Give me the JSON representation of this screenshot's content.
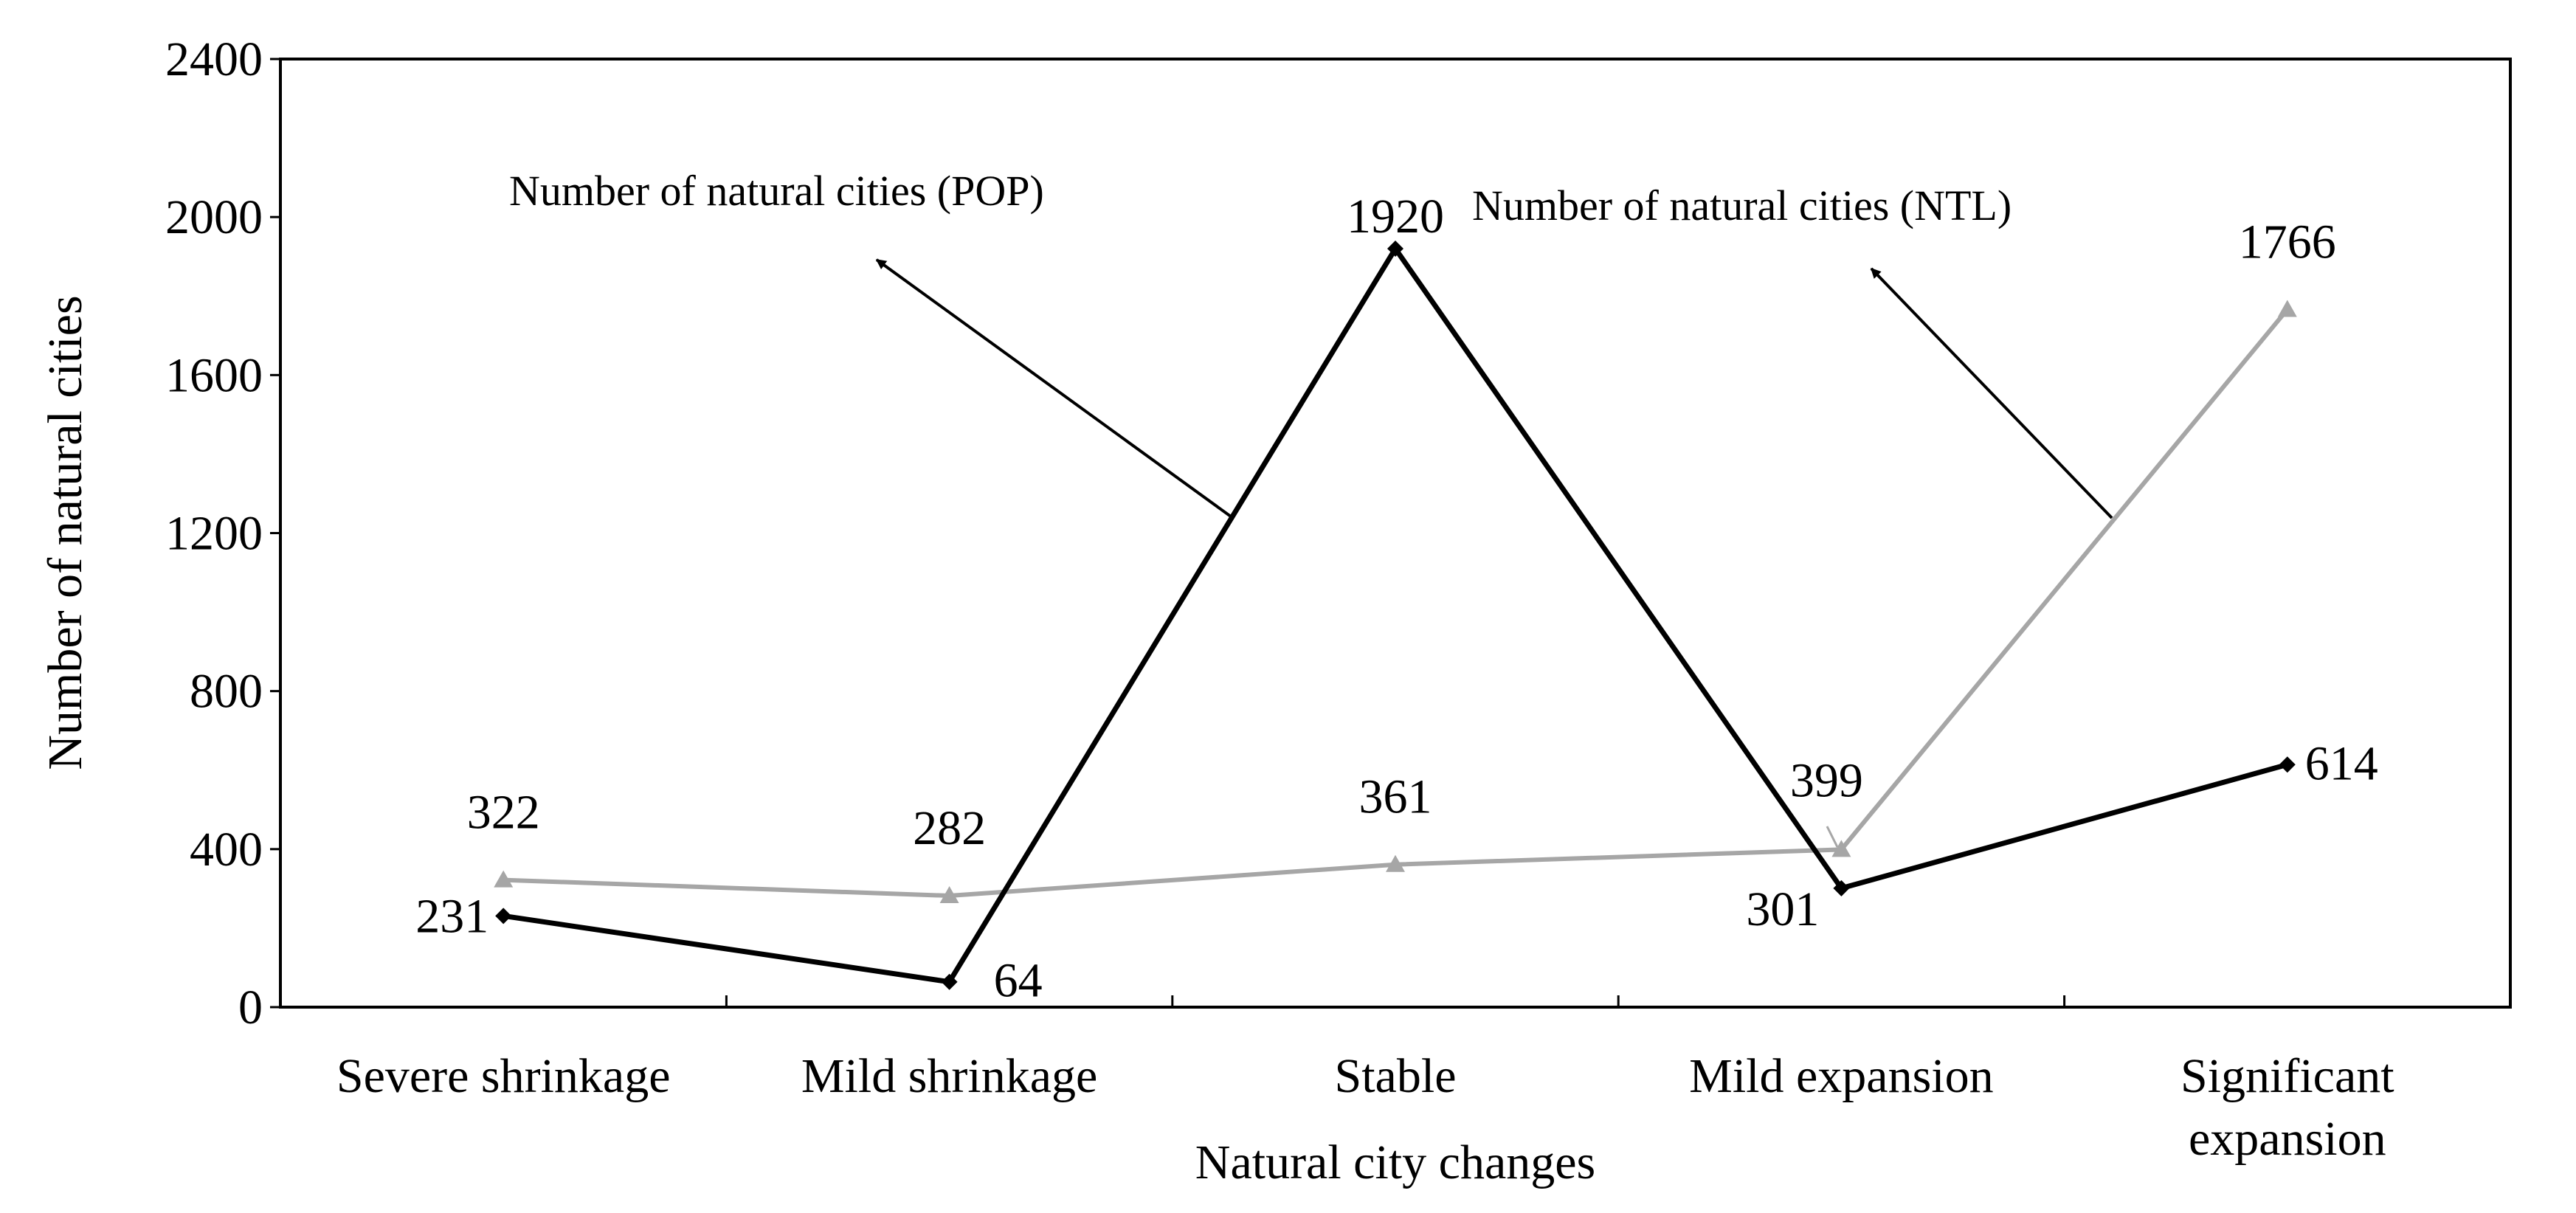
{
  "chart_data": {
    "type": "line",
    "xlabel": "Natural city changes",
    "ylabel": "Number of natural cities",
    "ylim": [
      0,
      2400
    ],
    "yticks": [
      0,
      400,
      800,
      1200,
      1600,
      2000,
      2400
    ],
    "categories": [
      [
        "Severe shrinkage"
      ],
      [
        "Mild shrinkage"
      ],
      [
        "Stable"
      ],
      [
        "Mild expansion"
      ],
      [
        "Significant",
        "expansion"
      ]
    ],
    "series": [
      {
        "name": "Number of natural cities (POP)",
        "color": "#000000",
        "marker": "diamond",
        "values": [
          231,
          64,
          1920,
          301,
          614
        ],
        "labels": [
          "231",
          "64",
          "1920",
          "301",
          "614"
        ]
      },
      {
        "name": "Number of natural cities (NTL)",
        "color": "#a6a6a6",
        "marker": "triangle",
        "values": [
          322,
          282,
          361,
          399,
          1766
        ],
        "labels": [
          "322",
          "282",
          "361",
          "399",
          "1766"
        ]
      }
    ],
    "annotations": [
      {
        "text": "Number of natural cities (POP)",
        "series": 0
      },
      {
        "text": "Number of natural cities (NTL)",
        "series": 1
      }
    ],
    "grid": false
  }
}
